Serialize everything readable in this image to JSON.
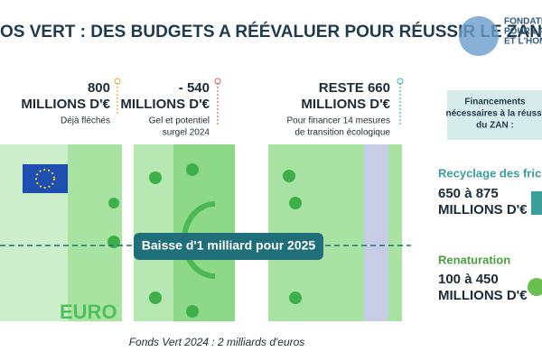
{
  "header": {
    "title": "OS VERT : DES BUDGETS A RÉÉVALUER POUR RÉUSSIR LE ZAN",
    "logo": [
      "FONDATION",
      "POUR LA",
      "ET L'HOM"
    ]
  },
  "blocks": [
    {
      "amount": "800",
      "unit": "MILLIONS D'€",
      "note": [
        "Déjà fléchés"
      ]
    },
    {
      "amount": "- 540",
      "unit": "MILLIONS D'€",
      "note": [
        "Gel et potentiel",
        "surgel 2024"
      ]
    },
    {
      "amount": "RESTE 660",
      "unit": "MILLIONS D'€",
      "note": [
        "Pour financer 14 mesures",
        "de transition écologique"
      ]
    }
  ],
  "banknote": "EURO",
  "banner": "Baisse d'1 milliard pour 2025",
  "caption": "Fonds Vert 2024 : 2 milliards d'euros",
  "needs": {
    "heading": [
      "Financements",
      "nécessaires à la réussi",
      "du ZAN :"
    ],
    "items": [
      {
        "label": "Recyclage des friche",
        "amount": "650 à 875",
        "unit": "MILLIONS D'€"
      },
      {
        "label": "Renaturation",
        "amount": "100 à 450",
        "unit": "MILLIONS D'€"
      }
    ]
  }
}
